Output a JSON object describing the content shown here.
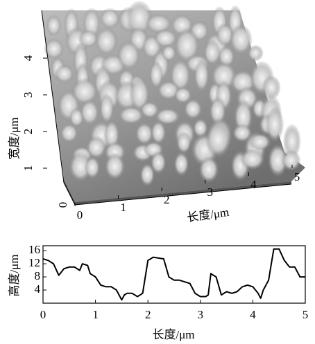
{
  "chart_data": [
    {
      "type": "surface",
      "xlabel": "长度/μm",
      "ylabel": "宽度/μm",
      "xlim": [
        0,
        5
      ],
      "xticks": [
        0,
        1,
        2,
        3,
        4,
        5
      ],
      "ylim": [
        0,
        5
      ],
      "yticks": [
        0,
        1,
        2,
        3,
        4
      ]
    },
    {
      "type": "line",
      "xlabel": "长度/μm",
      "ylabel": "高度/μm",
      "xlim": [
        0,
        5
      ],
      "xticks": [
        0,
        1,
        2,
        3,
        4,
        5
      ],
      "ylim": [
        0,
        17.5
      ],
      "yticks": [
        4,
        8,
        12,
        16
      ],
      "color": "#000000",
      "x": [
        0,
        0.1,
        0.2,
        0.3,
        0.4,
        0.5,
        0.6,
        0.7,
        0.75,
        0.85,
        0.9,
        1.0,
        1.1,
        1.2,
        1.3,
        1.4,
        1.5,
        1.55,
        1.6,
        1.7,
        1.8,
        1.9,
        2.0,
        2.1,
        2.3,
        2.4,
        2.5,
        2.6,
        2.7,
        2.8,
        2.9,
        3.0,
        3.1,
        3.15,
        3.2,
        3.3,
        3.4,
        3.5,
        3.6,
        3.7,
        3.8,
        3.9,
        4.0,
        4.1,
        4.15,
        4.2,
        4.3,
        4.4,
        4.5,
        4.6,
        4.7,
        4.8,
        4.9,
        5.0
      ],
      "values": [
        13.5,
        13,
        12,
        8.5,
        10.5,
        11,
        11,
        10,
        12,
        11.5,
        9,
        8,
        5.5,
        5,
        5,
        4,
        1,
        2.5,
        3,
        3,
        2,
        3,
        13,
        14,
        13.5,
        8,
        7,
        7,
        6.5,
        6,
        3,
        2,
        2,
        2.5,
        9,
        8,
        2.5,
        3.5,
        3,
        3.5,
        5,
        5.5,
        5,
        3,
        1.5,
        4,
        7,
        16.5,
        16.5,
        13,
        11,
        11,
        8,
        8
      ]
    }
  ]
}
